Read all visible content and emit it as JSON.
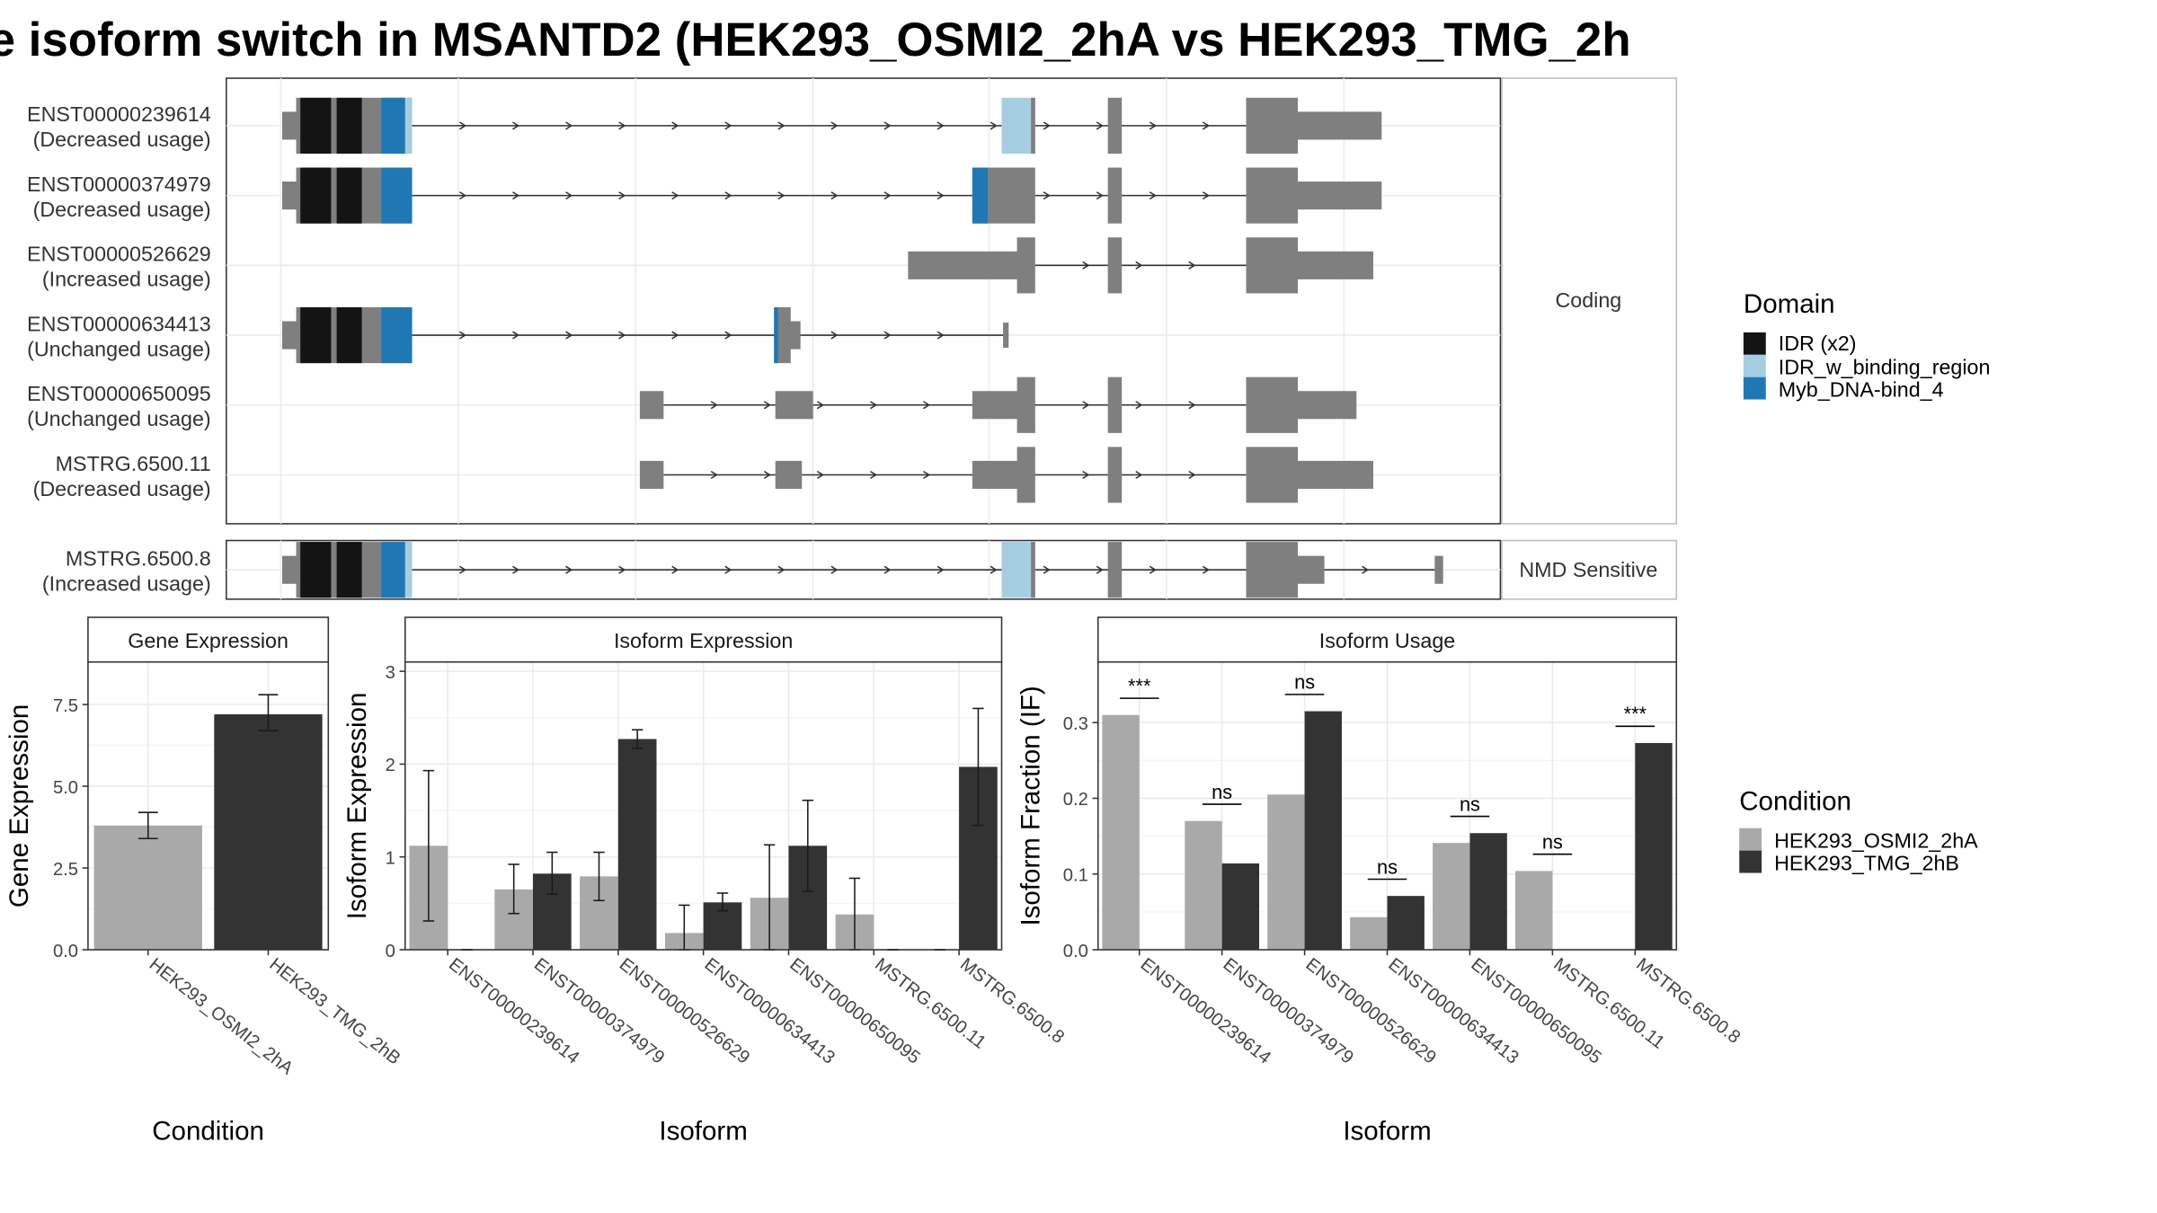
{
  "title": "e isoform switch in MSANTD2 (HEK293_OSMI2_2hA vs HEK293_TMG_2h",
  "colors": {
    "idr": "#141414",
    "idr_binding": "#a6cee3",
    "myb": "#1f78b4",
    "exon": "#7f7f7f",
    "cond_a": "#a9a9a9",
    "cond_b": "#333333"
  },
  "structure": {
    "panels": [
      {
        "label": "Coding",
        "isoforms": [
          {
            "id": "ENST00000239614",
            "usage": "(Decreased usage)"
          },
          {
            "id": "ENST00000374979",
            "usage": "(Decreased usage)"
          },
          {
            "id": "ENST00000526629",
            "usage": "(Increased usage)"
          },
          {
            "id": "ENST00000634413",
            "usage": "(Unchanged usage)"
          },
          {
            "id": "ENST00000650095",
            "usage": "(Unchanged usage)"
          },
          {
            "id": "MSTRG.6500.11",
            "usage": "(Decreased usage)"
          }
        ]
      },
      {
        "label": "NMD Sensitive",
        "isoforms": [
          {
            "id": "MSTRG.6500.8",
            "usage": "(Increased usage)"
          }
        ]
      }
    ]
  },
  "legend": {
    "domain_title": "Domain",
    "domains": [
      {
        "name": "IDR (x2)",
        "color": "#141414"
      },
      {
        "name": "IDR_w_binding_region",
        "color": "#a6cee3"
      },
      {
        "name": "Myb_DNA-bind_4",
        "color": "#1f78b4"
      }
    ],
    "condition_title": "Condition",
    "conditions": [
      {
        "name": "HEK293_OSMI2_2hA",
        "color": "#a9a9a9"
      },
      {
        "name": "HEK293_TMG_2hB",
        "color": "#333333"
      }
    ]
  },
  "chart_data": [
    {
      "type": "bar",
      "title": "Gene Expression",
      "xlabel": "Condition",
      "ylabel": "Gene Expression",
      "ylim": [
        0,
        8.8
      ],
      "yticks": [
        "0.0",
        "2.5",
        "5.0",
        "7.5"
      ],
      "categories": [
        "HEK293_OSMI2_2hA",
        "HEK293_TMG_2hB"
      ],
      "values": [
        3.8,
        7.2
      ],
      "errors": [
        [
          3.4,
          4.2
        ],
        [
          6.7,
          7.8
        ]
      ]
    },
    {
      "type": "bar",
      "title": "Isoform Expression",
      "xlabel": "Isoform",
      "ylabel": "Isoform Expression",
      "ylim": [
        0,
        3.1
      ],
      "yticks": [
        "0",
        "1",
        "2",
        "3"
      ],
      "categories": [
        "ENST00000239614",
        "ENST00000374979",
        "ENST00000526629",
        "ENST00000634413",
        "ENST00000650095",
        "MSTRG.6500.11",
        "MSTRG.6500.8"
      ],
      "series": [
        {
          "name": "HEK293_OSMI2_2hA",
          "values": [
            1.12,
            0.65,
            0.79,
            0.18,
            0.56,
            0.38,
            0.0
          ],
          "errors": [
            [
              0.31,
              1.93
            ],
            [
              0.39,
              0.92
            ],
            [
              0.53,
              1.05
            ],
            [
              0.0,
              0.48
            ],
            [
              0.0,
              1.13
            ],
            [
              0.0,
              0.77
            ],
            [
              0.0,
              0.0
            ]
          ]
        },
        {
          "name": "HEK293_TMG_2hB",
          "values": [
            0.0,
            0.82,
            2.27,
            0.51,
            1.12,
            0.0,
            1.97
          ],
          "errors": [
            [
              0.0,
              0.0
            ],
            [
              0.6,
              1.05
            ],
            [
              2.17,
              2.37
            ],
            [
              0.42,
              0.61
            ],
            [
              0.63,
              1.61
            ],
            [
              0.0,
              0.0
            ],
            [
              1.34,
              2.6
            ]
          ]
        }
      ]
    },
    {
      "type": "bar",
      "title": "Isoform Usage",
      "xlabel": "Isoform",
      "ylabel": "Isoform Fraction (IF)",
      "ylim": [
        0,
        0.38
      ],
      "yticks": [
        "0.0",
        "0.1",
        "0.2",
        "0.3"
      ],
      "categories": [
        "ENST00000239614",
        "ENST00000374979",
        "ENST00000526629",
        "ENST00000634413",
        "ENST00000650095",
        "MSTRG.6500.11",
        "MSTRG.6500.8"
      ],
      "series": [
        {
          "name": "HEK293_OSMI2_2hA",
          "values": [
            0.31,
            0.17,
            0.205,
            0.043,
            0.141,
            0.104,
            0.0
          ]
        },
        {
          "name": "HEK293_TMG_2hB",
          "values": [
            0.0,
            0.114,
            0.315,
            0.071,
            0.154,
            0.0,
            0.273
          ]
        }
      ],
      "significance": [
        "***",
        "ns",
        "ns",
        "ns",
        "ns",
        "ns",
        "***"
      ]
    }
  ]
}
